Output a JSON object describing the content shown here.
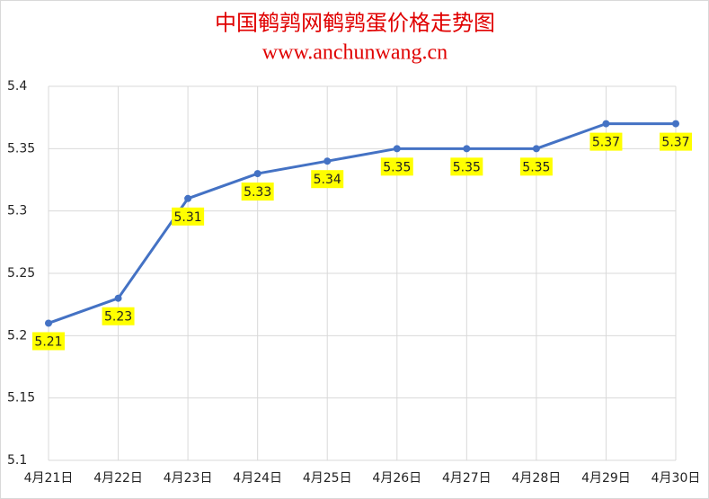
{
  "chart_data": {
    "type": "line",
    "title": "中国鹌鹑网鹌鹑蛋价格走势图",
    "subtitle": "www.anchunwang.cn",
    "categories": [
      "4月21日",
      "4月22日",
      "4月23日",
      "4月24日",
      "4月25日",
      "4月26日",
      "4月27日",
      "4月28日",
      "4月29日",
      "4月30日"
    ],
    "values": [
      5.21,
      5.23,
      5.31,
      5.33,
      5.34,
      5.35,
      5.35,
      5.35,
      5.37,
      5.37
    ],
    "color": "#4472c4",
    "label_color": "#ffff00",
    "title_color": "#e00000",
    "ylim": [
      5.1,
      5.4
    ],
    "yticks": [
      5.1,
      5.15,
      5.2,
      5.25,
      5.3,
      5.35,
      5.4
    ],
    "grid": true
  }
}
